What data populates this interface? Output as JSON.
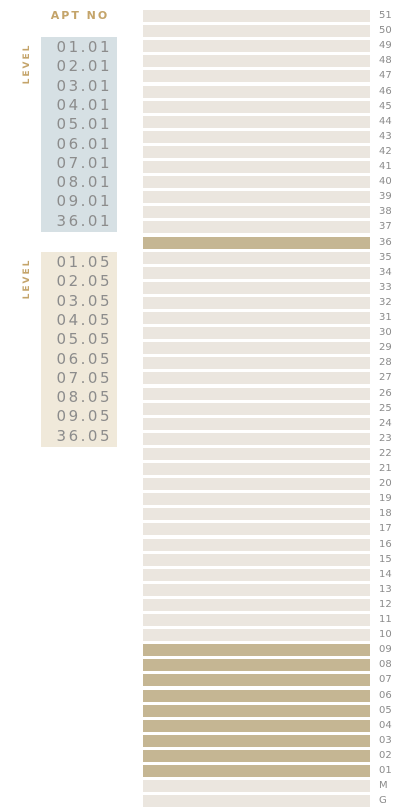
{
  "header": {
    "title": "APT NO"
  },
  "groups": [
    {
      "label": "LEVEL",
      "apartments": [
        "01.01",
        "02.01",
        "03.01",
        "04.01",
        "05.01",
        "06.01",
        "07.01",
        "08.01",
        "09.01",
        "36.01"
      ]
    },
    {
      "label": "LEVEL",
      "apartments": [
        "01.05",
        "02.05",
        "03.05",
        "04.05",
        "05.05",
        "06.05",
        "07.05",
        "08.05",
        "09.05",
        "36.05"
      ]
    }
  ],
  "floors": [
    {
      "label": "51",
      "highlighted": false
    },
    {
      "label": "50",
      "highlighted": false
    },
    {
      "label": "49",
      "highlighted": false
    },
    {
      "label": "48",
      "highlighted": false
    },
    {
      "label": "47",
      "highlighted": false
    },
    {
      "label": "46",
      "highlighted": false
    },
    {
      "label": "45",
      "highlighted": false
    },
    {
      "label": "44",
      "highlighted": false
    },
    {
      "label": "43",
      "highlighted": false
    },
    {
      "label": "42",
      "highlighted": false
    },
    {
      "label": "41",
      "highlighted": false
    },
    {
      "label": "40",
      "highlighted": false
    },
    {
      "label": "39",
      "highlighted": false
    },
    {
      "label": "38",
      "highlighted": false
    },
    {
      "label": "37",
      "highlighted": false
    },
    {
      "label": "36",
      "highlighted": true
    },
    {
      "label": "35",
      "highlighted": false
    },
    {
      "label": "34",
      "highlighted": false
    },
    {
      "label": "33",
      "highlighted": false
    },
    {
      "label": "32",
      "highlighted": false
    },
    {
      "label": "31",
      "highlighted": false
    },
    {
      "label": "30",
      "highlighted": false
    },
    {
      "label": "29",
      "highlighted": false
    },
    {
      "label": "28",
      "highlighted": false
    },
    {
      "label": "27",
      "highlighted": false
    },
    {
      "label": "26",
      "highlighted": false
    },
    {
      "label": "25",
      "highlighted": false
    },
    {
      "label": "24",
      "highlighted": false
    },
    {
      "label": "23",
      "highlighted": false
    },
    {
      "label": "22",
      "highlighted": false
    },
    {
      "label": "21",
      "highlighted": false
    },
    {
      "label": "20",
      "highlighted": false
    },
    {
      "label": "19",
      "highlighted": false
    },
    {
      "label": "18",
      "highlighted": false
    },
    {
      "label": "17",
      "highlighted": false
    },
    {
      "label": "16",
      "highlighted": false
    },
    {
      "label": "15",
      "highlighted": false
    },
    {
      "label": "14",
      "highlighted": false
    },
    {
      "label": "13",
      "highlighted": false
    },
    {
      "label": "12",
      "highlighted": false
    },
    {
      "label": "11",
      "highlighted": false
    },
    {
      "label": "10",
      "highlighted": false
    },
    {
      "label": "09",
      "highlighted": true
    },
    {
      "label": "08",
      "highlighted": true
    },
    {
      "label": "07",
      "highlighted": true
    },
    {
      "label": "06",
      "highlighted": true
    },
    {
      "label": "05",
      "highlighted": true
    },
    {
      "label": "04",
      "highlighted": true
    },
    {
      "label": "03",
      "highlighted": true
    },
    {
      "label": "02",
      "highlighted": true
    },
    {
      "label": "01",
      "highlighted": true
    },
    {
      "label": "M",
      "highlighted": false
    },
    {
      "label": "G",
      "highlighted": false
    }
  ]
}
